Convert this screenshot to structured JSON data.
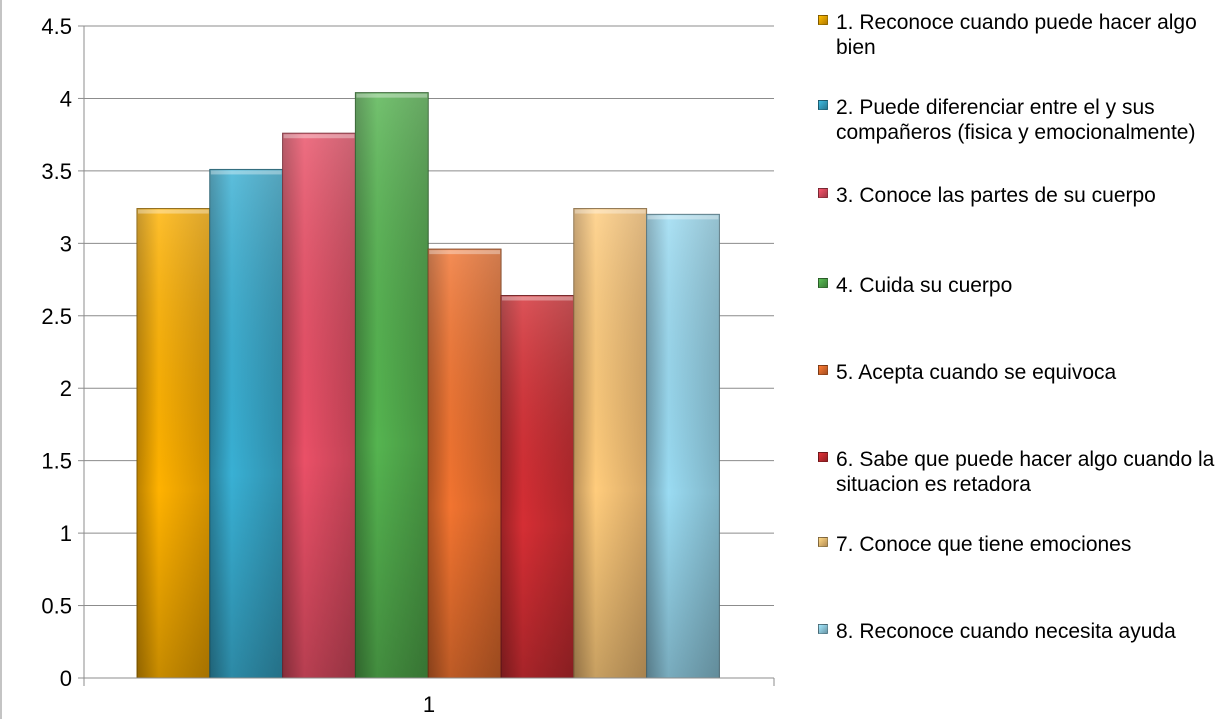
{
  "chart_data": {
    "type": "bar",
    "title": "",
    "xlabel": "",
    "ylabel": "",
    "categories": [
      "1"
    ],
    "ylim": [
      0,
      4.5
    ],
    "yticks": [
      "0",
      "0.5",
      "1",
      "1.5",
      "2",
      "2.5",
      "3",
      "3.5",
      "4",
      "4.5"
    ],
    "grid": true,
    "legend_position": "right",
    "series": [
      {
        "name": "1. Reconoce cuando puede hacer algo bien",
        "values": [
          3.24
        ],
        "color": "#f0a500"
      },
      {
        "name": "2. Puede diferenciar entre el y sus compañeros  (fisica y emocionalmente)",
        "values": [
          3.51
        ],
        "color": "#35a3c4"
      },
      {
        "name": "3. Conoce las partes de su cuerpo",
        "values": [
          3.76
        ],
        "color": "#d94a5f"
      },
      {
        "name": "4. Cuida su cuerpo",
        "values": [
          4.04
        ],
        "color": "#4fa74a"
      },
      {
        "name": "5. Acepta cuando se equivoca",
        "values": [
          2.96
        ],
        "color": "#e06b2c"
      },
      {
        "name": "6. Sabe que puede hacer algo cuando la situacion es retadora",
        "values": [
          2.64
        ],
        "color": "#c52b30"
      },
      {
        "name": "7. Conoce que tiene emociones",
        "values": [
          3.24
        ],
        "color": "#f2bd73"
      },
      {
        "name": "8. Reconoce cuando necesita ayuda",
        "values": [
          3.2
        ],
        "color": "#8fcbe0"
      }
    ]
  }
}
